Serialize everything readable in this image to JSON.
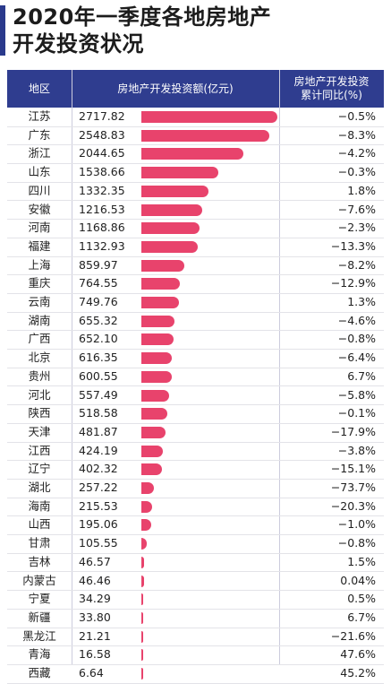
{
  "title": {
    "line1": "2020年一季度各地房地产",
    "line2": "开发投资状况"
  },
  "colors": {
    "header_bg": "#2f3d8f",
    "bar": "#e8436c",
    "accent_bar": "#2a3a8c"
  },
  "chart_data": {
    "type": "bar",
    "columns": [
      "地区",
      "房地产开发投资额(亿元)",
      "房地产开发投资累计同比(%)"
    ],
    "yoy_header_line1": "房地产开发投资",
    "yoy_header_line2": "累计同比(%)",
    "max_value": 2717.82,
    "rows": [
      {
        "region": "江苏",
        "value": "2717.82",
        "v": 2717.82,
        "yoy": "−0.5%"
      },
      {
        "region": "广东",
        "value": "2548.83",
        "v": 2548.83,
        "yoy": "−8.3%"
      },
      {
        "region": "浙江",
        "value": "2044.65",
        "v": 2044.65,
        "yoy": "−4.2%"
      },
      {
        "region": "山东",
        "value": "1538.66",
        "v": 1538.66,
        "yoy": "−0.3%"
      },
      {
        "region": "四川",
        "value": "1332.35",
        "v": 1332.35,
        "yoy": "1.8%"
      },
      {
        "region": "安徽",
        "value": "1216.53",
        "v": 1216.53,
        "yoy": "−7.6%"
      },
      {
        "region": "河南",
        "value": "1168.86",
        "v": 1168.86,
        "yoy": "−2.3%"
      },
      {
        "region": "福建",
        "value": "1132.93",
        "v": 1132.93,
        "yoy": "−13.3%"
      },
      {
        "region": "上海",
        "value": "859.97",
        "v": 859.97,
        "yoy": "−8.2%"
      },
      {
        "region": "重庆",
        "value": "764.55",
        "v": 764.55,
        "yoy": "−12.9%"
      },
      {
        "region": "云南",
        "value": "749.76",
        "v": 749.76,
        "yoy": "1.3%"
      },
      {
        "region": "湖南",
        "value": "655.32",
        "v": 655.32,
        "yoy": "−4.6%"
      },
      {
        "region": "广西",
        "value": "652.10",
        "v": 652.1,
        "yoy": "−0.8%"
      },
      {
        "region": "北京",
        "value": "616.35",
        "v": 616.35,
        "yoy": "−6.4%"
      },
      {
        "region": "贵州",
        "value": "600.55",
        "v": 600.55,
        "yoy": "6.7%"
      },
      {
        "region": "河北",
        "value": "557.49",
        "v": 557.49,
        "yoy": "−5.8%"
      },
      {
        "region": "陕西",
        "value": "518.58",
        "v": 518.58,
        "yoy": "−0.1%"
      },
      {
        "region": "天津",
        "value": "481.87",
        "v": 481.87,
        "yoy": "−17.9%"
      },
      {
        "region": "江西",
        "value": "424.19",
        "v": 424.19,
        "yoy": "−3.8%"
      },
      {
        "region": "辽宁",
        "value": "402.32",
        "v": 402.32,
        "yoy": "−15.1%"
      },
      {
        "region": "湖北",
        "value": "257.22",
        "v": 257.22,
        "yoy": "−73.7%"
      },
      {
        "region": "海南",
        "value": "215.53",
        "v": 215.53,
        "yoy": "−20.3%"
      },
      {
        "region": "山西",
        "value": "195.06",
        "v": 195.06,
        "yoy": "−1.0%"
      },
      {
        "region": "甘肃",
        "value": "105.55",
        "v": 105.55,
        "yoy": "−0.8%"
      },
      {
        "region": "吉林",
        "value": "46.57",
        "v": 46.57,
        "yoy": "1.5%"
      },
      {
        "region": "内蒙古",
        "value": "46.46",
        "v": 46.46,
        "yoy": "0.04%"
      },
      {
        "region": "宁夏",
        "value": "34.29",
        "v": 34.29,
        "yoy": "0.5%"
      },
      {
        "region": "新疆",
        "value": "33.80",
        "v": 33.8,
        "yoy": "6.7%"
      },
      {
        "region": "黑龙江",
        "value": "21.21",
        "v": 21.21,
        "yoy": "−21.6%"
      },
      {
        "region": "青海",
        "value": "16.58",
        "v": 16.58,
        "yoy": "47.6%"
      },
      {
        "region": "西藏",
        "value": "6.64",
        "v": 6.64,
        "yoy": "45.2%"
      }
    ]
  }
}
